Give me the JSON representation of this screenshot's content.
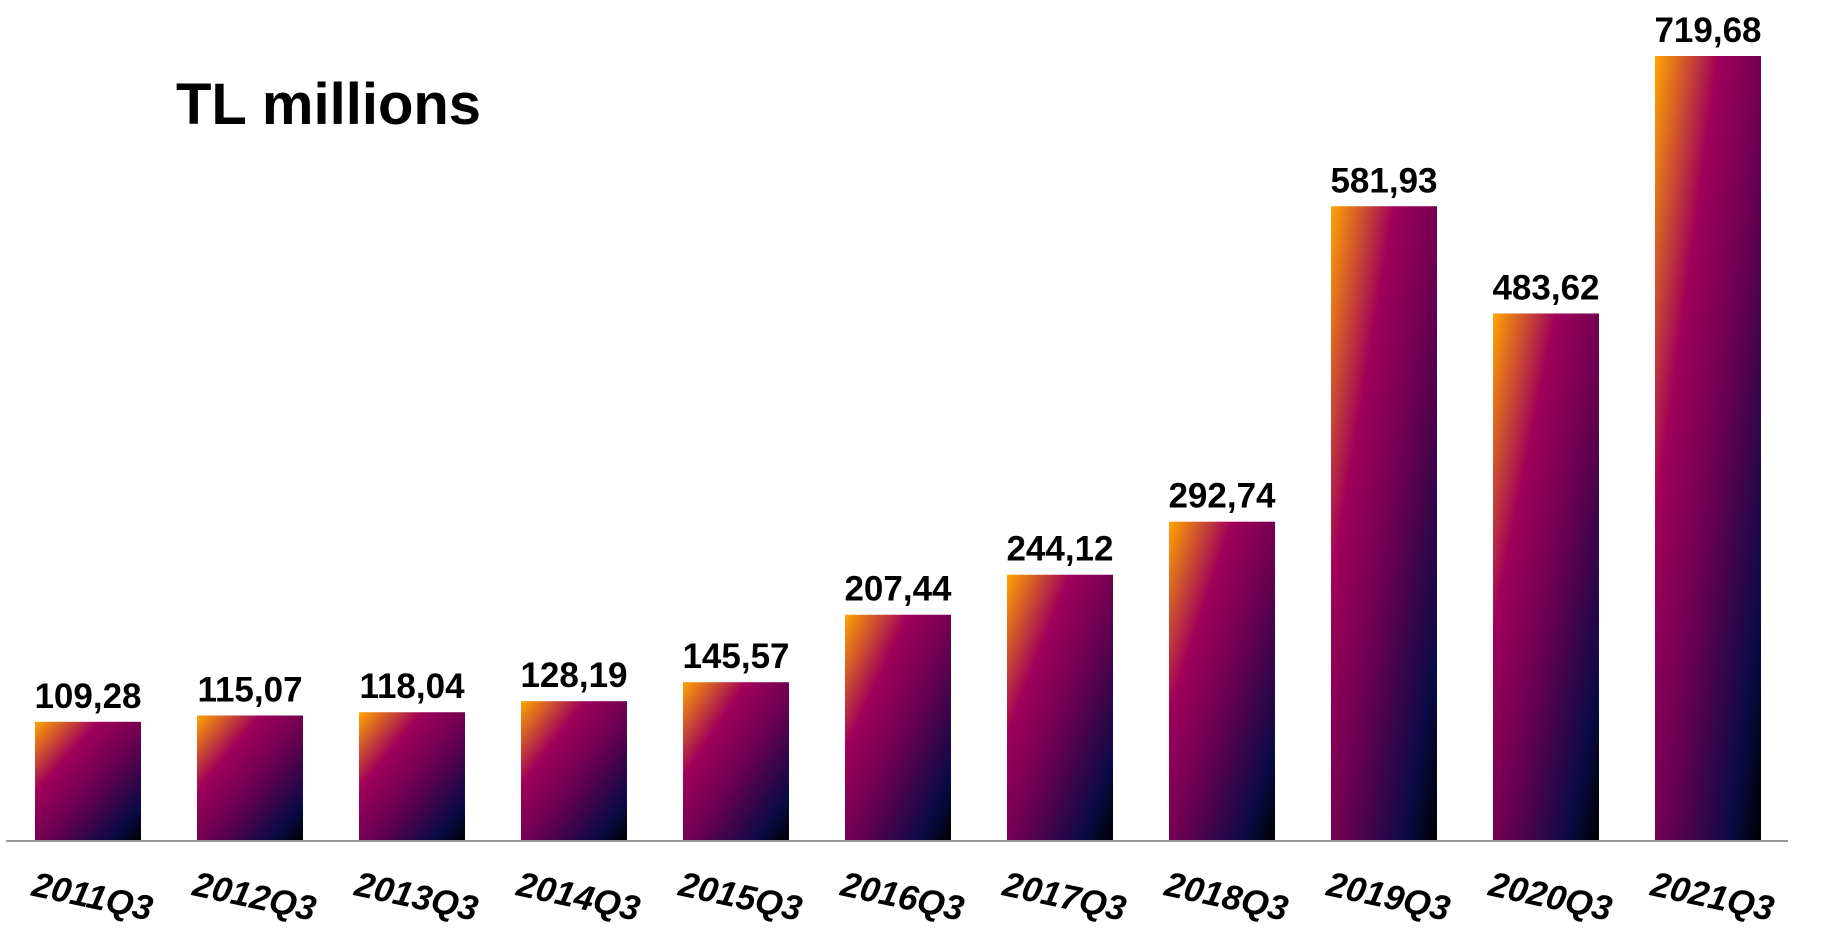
{
  "chart_data": {
    "type": "bar",
    "title": "TL millions",
    "categories": [
      "2011Q3",
      "2012Q3",
      "2013Q3",
      "2014Q3",
      "2015Q3",
      "2016Q3",
      "2017Q3",
      "2018Q3",
      "2019Q3",
      "2020Q3",
      "2021Q3"
    ],
    "values": [
      109.28,
      115.07,
      118.04,
      128.19,
      145.57,
      207.44,
      244.12,
      292.74,
      581.93,
      483.62,
      719.68
    ],
    "value_labels": [
      "109,28",
      "115,07",
      "118,04",
      "128,19",
      "145,57",
      "207,44",
      "244,12",
      "292,74",
      "581,93",
      "483,62",
      "719,68"
    ],
    "xlabel": "",
    "ylabel": "",
    "ylim": [
      0,
      775
    ],
    "grid": false,
    "legend": "none",
    "colors": {
      "bar_gradient": [
        "#ffa500",
        "#a0005a",
        "#6a0050",
        "#0a0a46",
        "#000000"
      ],
      "axis": "#9a9a9a",
      "text": "#000000"
    }
  }
}
